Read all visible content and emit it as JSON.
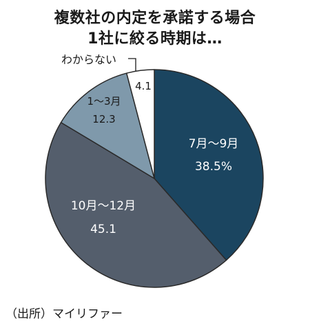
{
  "title_line1": "複数社の内定を承諾する場合",
  "title_line2": "1社に絞る時期は…",
  "source": "（出所）マイリファー",
  "colors": {
    "slice_jul_sep": "#1b4560",
    "slice_oct_dec": "#545e6c",
    "slice_jan_mar": "#7f99ab",
    "slice_unknown": "#ffffff",
    "outline": "#2a2a2a"
  },
  "chart_data": {
    "type": "pie",
    "start_angle_deg_clockwise_from_top": 0,
    "slices": [
      {
        "label": "7月〜9月",
        "value": 38.5,
        "value_text": "38.5%",
        "color": "#1b4560",
        "text_color": "#ffffff"
      },
      {
        "label": "10月〜12月",
        "value": 45.1,
        "value_text": "45.1",
        "color": "#545e6c",
        "text_color": "#ffffff"
      },
      {
        "label": "1〜3月",
        "value": 12.3,
        "value_text": "12.3",
        "color": "#7f99ab",
        "text_color": "#1a1a1a"
      },
      {
        "label": "わからない",
        "value": 4.1,
        "value_text": "4.1",
        "color": "#ffffff",
        "text_color": "#1a1a1a",
        "label_outside": true
      }
    ]
  }
}
